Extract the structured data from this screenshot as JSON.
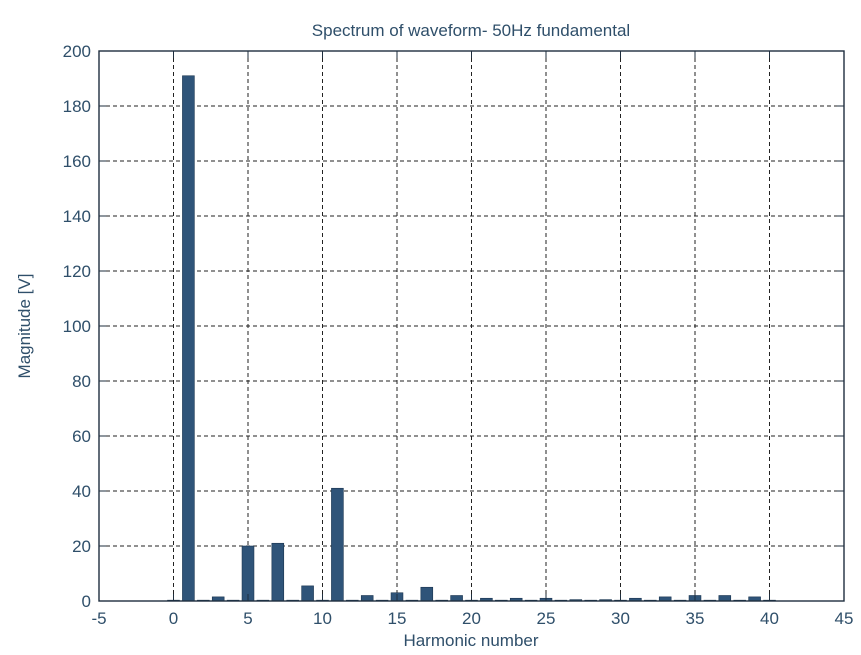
{
  "chart_data": {
    "type": "bar",
    "title": "Spectrum of waveform- 50Hz fundamental",
    "xlabel": "Harmonic number",
    "ylabel": "Magnitude [V]",
    "xlim": [
      -5,
      45
    ],
    "ylim": [
      0,
      200
    ],
    "xticks": [
      -5,
      0,
      5,
      10,
      15,
      20,
      25,
      30,
      35,
      40,
      45
    ],
    "yticks": [
      0,
      20,
      40,
      60,
      80,
      100,
      120,
      140,
      160,
      180,
      200
    ],
    "grid": true,
    "x": [
      0,
      1,
      2,
      3,
      4,
      5,
      6,
      7,
      8,
      9,
      10,
      11,
      12,
      13,
      14,
      15,
      16,
      17,
      18,
      19,
      20,
      21,
      22,
      23,
      24,
      25,
      26,
      27,
      28,
      29,
      30,
      31,
      32,
      33,
      34,
      35,
      36,
      37,
      38,
      39,
      40
    ],
    "values": [
      0.3,
      191,
      0.3,
      1.5,
      0.3,
      20,
      0.3,
      21,
      0.3,
      5.5,
      0.3,
      41,
      0.3,
      2,
      0.3,
      3,
      0.3,
      5,
      0.3,
      2,
      0.3,
      1,
      0.3,
      1,
      0.3,
      1,
      0.3,
      0.5,
      0.3,
      0.5,
      0.3,
      1,
      0.3,
      1.5,
      0.3,
      2,
      0.3,
      2,
      0.3,
      1.5,
      0.3
    ],
    "bar_color": "#2f5479",
    "text_color": "#2f4f6a"
  }
}
